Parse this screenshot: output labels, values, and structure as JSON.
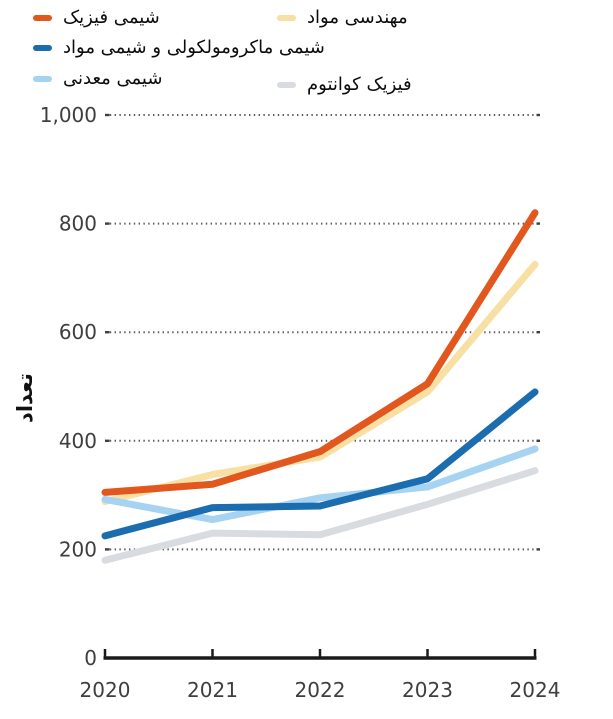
{
  "legend": {
    "items": [
      {
        "key": "physical-chemistry",
        "label": "شیمی فیزیک",
        "color": "#E2571E"
      },
      {
        "key": "materials-engineering",
        "label": "مهندسی مواد",
        "color": "#F8DFA4"
      },
      {
        "key": "macromolecular-and-materials-chemistry",
        "label": "شیمی ماکرومولکولی و شیمی مواد",
        "color": "#1C6CB0"
      },
      {
        "key": "inorganic-chemistry",
        "label": "شیمی معدنی",
        "color": "#A6D3F1"
      },
      {
        "key": "quantum-physics",
        "label": "فیزیک کوانتوم",
        "color": "#D8DCE1"
      }
    ]
  },
  "axes": {
    "ylabel": "تعداد",
    "ytick_labels": [
      "0",
      "200",
      "400",
      "600",
      "800",
      "1,000"
    ],
    "xtick_labels": [
      "2020",
      "2021",
      "2022",
      "2023",
      "2024"
    ]
  },
  "chart_data": {
    "type": "line",
    "x": [
      2020,
      2021,
      2022,
      2023,
      2024
    ],
    "x_labels": [
      "2020",
      "2021",
      "2022",
      "2023",
      "2024"
    ],
    "title": "",
    "xlabel": "",
    "ylabel": "تعداد",
    "ylim": [
      0,
      1000
    ],
    "yticks": [
      0,
      200,
      400,
      600,
      800,
      1000
    ],
    "ytick_labels": [
      "0",
      "200",
      "400",
      "600",
      "800",
      "1,000"
    ],
    "grid": "horizontal-dotted",
    "legend_position": "top",
    "series": [
      {
        "key": "physical-chemistry",
        "name": "شیمی فیزیک",
        "color": "#E2571E",
        "values": [
          305,
          320,
          380,
          505,
          820
        ]
      },
      {
        "key": "materials-engineering",
        "name": "مهندسی مواد",
        "color": "#F8DFA4",
        "values": [
          288,
          338,
          370,
          490,
          725
        ]
      },
      {
        "key": "macromolecular-and-materials-chemistry",
        "name": "شیمی ماکرومولکولی و شیمی مواد",
        "color": "#1C6CB0",
        "values": [
          225,
          277,
          280,
          330,
          490
        ]
      },
      {
        "key": "inorganic-chemistry",
        "name": "شیمی معدنی",
        "color": "#A6D3F1",
        "values": [
          292,
          255,
          295,
          315,
          385
        ]
      },
      {
        "key": "quantum-physics",
        "name": "فیزیک کوانتوم",
        "color": "#D8DCE1",
        "values": [
          180,
          230,
          227,
          283,
          345
        ]
      }
    ],
    "draw_order": [
      1,
      4,
      3,
      2,
      0
    ]
  },
  "colors": {
    "axis": "#1a1a1a",
    "gridline": "#5a5a5a",
    "tick_label": "#3e3e3e"
  }
}
